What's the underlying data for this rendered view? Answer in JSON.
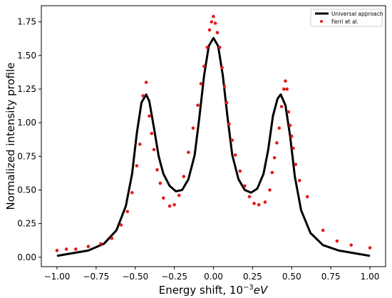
{
  "chart_data": {
    "type": "line",
    "xlabel": "Energy shift, 10",
    "xlabel_exponent": "−3",
    "xlabel_unit": "eV",
    "ylabel": "Normalized intensity profile",
    "xlim": [
      -1.1,
      1.1
    ],
    "ylim": [
      -0.07,
      1.87
    ],
    "grid": false,
    "legend_position": "top-right",
    "x_ticks": [
      -1.0,
      -0.75,
      -0.5,
      -0.25,
      0.0,
      0.25,
      0.5,
      0.75,
      1.0
    ],
    "x_tick_labels": [
      "−1.00",
      "−0.75",
      "−0.50",
      "−0.25",
      "0.00",
      "0.25",
      "0.50",
      "0.75",
      "1.00"
    ],
    "y_ticks": [
      0.0,
      0.25,
      0.5,
      0.75,
      1.0,
      1.25,
      1.5,
      1.75
    ],
    "y_tick_labels": [
      "0.00",
      "0.25",
      "0.50",
      "0.75",
      "1.00",
      "1.25",
      "1.50",
      "1.75"
    ],
    "series": [
      {
        "name": "Universal approach",
        "kind": "line",
        "color": "#000000",
        "x": [
          -1.0,
          -0.9,
          -0.8,
          -0.7,
          -0.62,
          -0.56,
          -0.52,
          -0.49,
          -0.46,
          -0.43,
          -0.41,
          -0.38,
          -0.35,
          -0.32,
          -0.28,
          -0.24,
          -0.2,
          -0.16,
          -0.12,
          -0.09,
          -0.06,
          -0.03,
          0.0,
          0.03,
          0.06,
          0.09,
          0.12,
          0.16,
          0.2,
          0.24,
          0.28,
          0.32,
          0.35,
          0.38,
          0.41,
          0.43,
          0.46,
          0.49,
          0.52,
          0.56,
          0.62,
          0.7,
          0.8,
          0.9,
          1.0
        ],
        "y": [
          0.01,
          0.03,
          0.05,
          0.1,
          0.2,
          0.38,
          0.62,
          0.92,
          1.15,
          1.21,
          1.16,
          0.96,
          0.75,
          0.62,
          0.53,
          0.49,
          0.5,
          0.58,
          0.76,
          1.04,
          1.35,
          1.57,
          1.63,
          1.57,
          1.35,
          1.04,
          0.76,
          0.58,
          0.5,
          0.48,
          0.51,
          0.62,
          0.8,
          1.05,
          1.18,
          1.21,
          1.13,
          0.9,
          0.6,
          0.35,
          0.18,
          0.09,
          0.05,
          0.03,
          0.01
        ]
      },
      {
        "name": "Ferri et al.",
        "kind": "scatter",
        "color": "#e31a1c",
        "x": [
          -1.0,
          -0.94,
          -0.88,
          -0.8,
          -0.72,
          -0.65,
          -0.59,
          -0.55,
          -0.52,
          -0.49,
          -0.47,
          -0.45,
          -0.43,
          -0.41,
          -0.395,
          -0.38,
          -0.36,
          -0.34,
          -0.32,
          -0.28,
          -0.25,
          -0.22,
          -0.19,
          -0.16,
          -0.13,
          -0.1,
          -0.08,
          -0.06,
          -0.04,
          -0.025,
          -0.012,
          0.0,
          0.012,
          0.025,
          0.04,
          0.055,
          0.07,
          0.085,
          0.1,
          0.12,
          0.14,
          0.17,
          0.2,
          0.23,
          0.26,
          0.29,
          0.33,
          0.36,
          0.375,
          0.39,
          0.405,
          0.42,
          0.435,
          0.45,
          0.46,
          0.47,
          0.48,
          0.49,
          0.5,
          0.51,
          0.525,
          0.55,
          0.6,
          0.7,
          0.79,
          0.88,
          1.0
        ],
        "y": [
          0.05,
          0.06,
          0.06,
          0.08,
          0.1,
          0.14,
          0.24,
          0.34,
          0.48,
          0.68,
          0.84,
          1.2,
          1.3,
          1.05,
          0.92,
          0.8,
          0.65,
          0.55,
          0.44,
          0.38,
          0.39,
          0.46,
          0.6,
          0.78,
          0.96,
          1.13,
          1.29,
          1.42,
          1.56,
          1.69,
          1.75,
          1.79,
          1.74,
          1.67,
          1.56,
          1.41,
          1.27,
          1.15,
          0.99,
          0.87,
          0.76,
          0.64,
          0.53,
          0.45,
          0.4,
          0.39,
          0.41,
          0.5,
          0.63,
          0.74,
          0.85,
          0.96,
          1.12,
          1.25,
          1.31,
          1.25,
          1.08,
          0.98,
          0.9,
          0.81,
          0.69,
          0.57,
          0.45,
          0.2,
          0.12,
          0.09,
          0.07
        ]
      }
    ]
  }
}
